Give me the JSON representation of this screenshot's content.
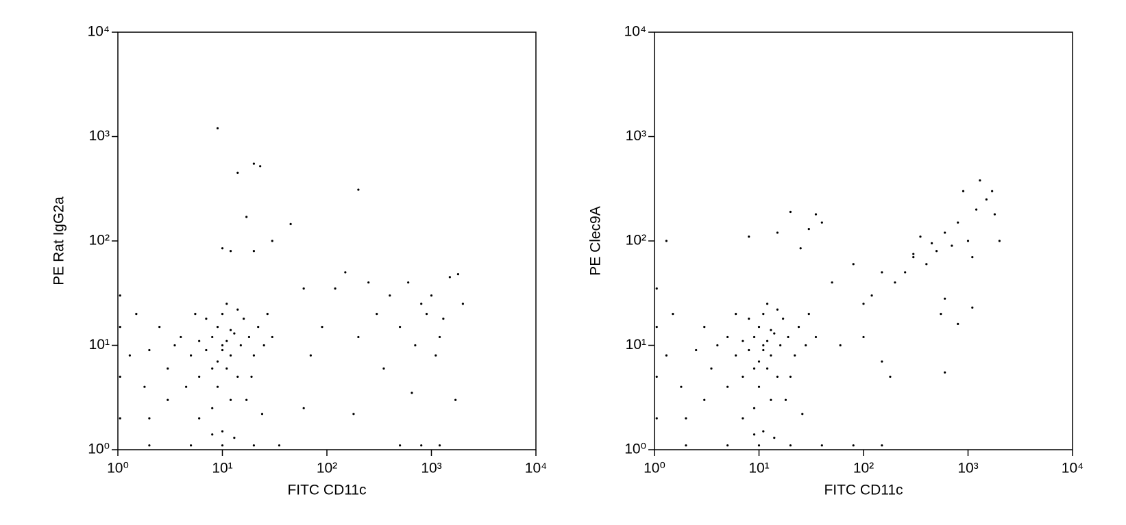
{
  "chart_data": [
    {
      "type": "scatter",
      "xlabel": "FITC CD11c",
      "ylabel": "PE Rat IgG2a",
      "color": "#000000",
      "log_scale": true,
      "xlim": [
        1,
        10000
      ],
      "ylim": [
        1,
        10000
      ],
      "xticks": [
        {
          "value": 1,
          "label": "10⁰"
        },
        {
          "value": 10,
          "label": "10¹"
        },
        {
          "value": 100,
          "label": "10²"
        },
        {
          "value": 1000,
          "label": "10³"
        },
        {
          "value": 10000,
          "label": "10⁴"
        }
      ],
      "yticks": [
        {
          "value": 1,
          "label": "10⁰"
        },
        {
          "value": 10,
          "label": "10¹"
        },
        {
          "value": 100,
          "label": "10²"
        },
        {
          "value": 1000,
          "label": "10³"
        },
        {
          "value": 10000,
          "label": "10⁴"
        }
      ],
      "x": [
        10,
        8,
        12,
        9,
        11,
        7,
        13,
        6,
        15,
        10,
        9,
        12,
        8,
        14,
        5,
        4,
        3.5,
        18,
        20,
        16,
        11,
        7,
        6,
        10,
        13,
        8,
        17,
        22,
        25,
        3,
        2.5,
        2,
        4.5,
        5.5,
        9,
        11,
        12,
        10,
        8,
        14,
        19,
        27,
        30,
        3,
        2,
        1.5,
        1.3,
        1.8,
        6,
        24,
        1.05,
        1.05,
        1.05,
        1.05,
        2,
        5,
        10,
        20,
        35,
        500,
        800,
        1200,
        9,
        20,
        23,
        14,
        200,
        17,
        45,
        10,
        12,
        20,
        30,
        60,
        120,
        150,
        250,
        300,
        400,
        500,
        600,
        700,
        800,
        1000,
        1200,
        1500,
        1800,
        900,
        1100,
        650,
        1700,
        350,
        200,
        90,
        70,
        60,
        180,
        2000,
        1300
      ],
      "y": [
        10,
        12,
        8,
        15,
        6,
        9,
        13,
        11,
        10,
        20,
        4,
        3,
        2.5,
        5,
        8,
        12,
        10,
        12,
        8,
        18,
        25,
        18,
        5,
        1.5,
        1.3,
        1.4,
        3,
        15,
        10,
        6,
        15,
        9,
        4,
        20,
        7,
        11,
        14,
        9,
        6,
        22,
        5,
        20,
        12,
        3,
        2,
        20,
        8,
        4,
        2,
        2.2,
        30,
        15,
        5,
        2,
        1.1,
        1.1,
        1.1,
        1.1,
        1.1,
        1.1,
        1.1,
        1.1,
        1200,
        550,
        520,
        450,
        310,
        170,
        145,
        85,
        80,
        80,
        100,
        35,
        35,
        50,
        40,
        20,
        30,
        15,
        40,
        10,
        25,
        30,
        12,
        45,
        48,
        20,
        8,
        3.5,
        3,
        6,
        12,
        15,
        8,
        2.5,
        2.2,
        25,
        18
      ]
    },
    {
      "type": "scatter",
      "xlabel": "FITC CD11c",
      "ylabel": "PE Clec9A",
      "color": "#000000",
      "log_scale": true,
      "xlim": [
        1,
        10000
      ],
      "ylim": [
        1,
        10000
      ],
      "xticks": [
        {
          "value": 1,
          "label": "10⁰"
        },
        {
          "value": 10,
          "label": "10¹"
        },
        {
          "value": 100,
          "label": "10²"
        },
        {
          "value": 1000,
          "label": "10³"
        },
        {
          "value": 10000,
          "label": "10⁴"
        }
      ],
      "yticks": [
        {
          "value": 1,
          "label": "10⁰"
        },
        {
          "value": 10,
          "label": "10¹"
        },
        {
          "value": 100,
          "label": "10²"
        },
        {
          "value": 1000,
          "label": "10³"
        },
        {
          "value": 10000,
          "label": "10⁴"
        }
      ],
      "x": [
        11,
        9,
        13,
        10,
        12,
        8,
        14,
        7,
        16,
        11,
        10,
        13,
        9,
        15,
        6,
        5,
        4,
        19,
        22,
        17,
        12,
        8,
        7,
        11,
        14,
        9,
        18,
        24,
        28,
        3.5,
        3,
        2.5,
        5,
        6,
        10,
        12,
        13,
        11,
        9,
        15,
        20,
        30,
        35,
        3,
        2,
        1.5,
        1.3,
        1.8,
        7,
        26,
        1.05,
        1.05,
        1.05,
        1.05,
        2,
        5,
        10,
        20,
        40,
        80,
        150,
        1000,
        800,
        1200,
        1500,
        1300,
        1700,
        900,
        600,
        500,
        400,
        300,
        250,
        200,
        150,
        120,
        700,
        1100,
        1800,
        2000,
        600,
        550,
        800,
        1100,
        600,
        350,
        300,
        450,
        100,
        80,
        35,
        30,
        20,
        15,
        8,
        1.3,
        25,
        40,
        50,
        60,
        100,
        150,
        180
      ],
      "y": [
        10,
        12,
        8,
        15,
        6,
        9,
        13,
        11,
        10,
        20,
        4,
        3,
        2.5,
        5,
        8,
        12,
        10,
        12,
        8,
        18,
        25,
        18,
        5,
        1.5,
        1.3,
        1.4,
        3,
        15,
        10,
        6,
        15,
        9,
        4,
        20,
        7,
        11,
        14,
        9,
        6,
        22,
        5,
        20,
        12,
        3,
        2,
        20,
        8,
        4,
        2,
        2.2,
        35,
        15,
        5,
        2,
        1.1,
        1.1,
        1.1,
        1.1,
        1.1,
        1.1,
        1.1,
        100,
        150,
        200,
        250,
        380,
        300,
        300,
        120,
        80,
        60,
        70,
        50,
        40,
        50,
        30,
        90,
        70,
        180,
        100,
        28,
        20,
        16,
        23,
        5.5,
        110,
        75,
        95,
        25,
        60,
        180,
        130,
        190,
        120,
        110,
        100,
        85,
        150,
        40,
        10,
        12,
        7,
        5
      ]
    }
  ]
}
